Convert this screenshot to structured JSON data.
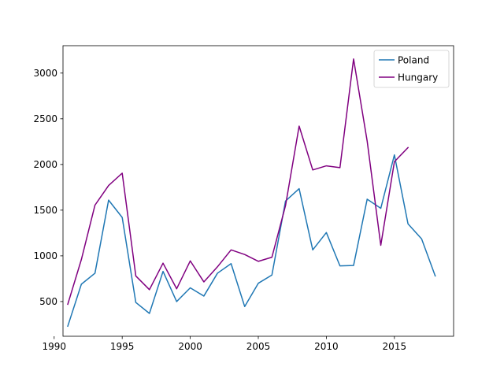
{
  "chart_data": {
    "type": "line",
    "title": "",
    "xlabel": "",
    "ylabel": "",
    "xlim": [
      1990.65,
      2019.35
    ],
    "ylim": [
      120,
      3300
    ],
    "x_ticks": [
      1990,
      1995,
      2000,
      2005,
      2010,
      2015
    ],
    "y_ticks": [
      500,
      1000,
      1500,
      2000,
      2500,
      3000
    ],
    "grid": false,
    "legend_position": "top-right",
    "series": [
      {
        "name": "Poland",
        "color": "#1f77b4",
        "x": [
          1991,
          1992,
          1993,
          1994,
          1995,
          1996,
          1997,
          1998,
          1999,
          2000,
          2001,
          2002,
          2003,
          2004,
          2005,
          2006,
          2007,
          2008,
          2009,
          2010,
          2011,
          2012,
          2013,
          2014,
          2015,
          2016,
          2017,
          2018
        ],
        "values": [
          230,
          690,
          810,
          1610,
          1420,
          490,
          370,
          830,
          500,
          650,
          560,
          810,
          915,
          445,
          700,
          790,
          1600,
          1735,
          1065,
          1255,
          890,
          895,
          1620,
          1520,
          2105,
          1350,
          1185,
          780
        ]
      },
      {
        "name": "Hungary",
        "color": "#800080",
        "x": [
          1991,
          1992,
          1993,
          1994,
          1995,
          1996,
          1997,
          1998,
          1999,
          2000,
          2001,
          2002,
          2003,
          2004,
          2005,
          2006,
          2007,
          2008,
          2009,
          2010,
          2011,
          2012,
          2013,
          2014,
          2015,
          2016
        ],
        "values": [
          470,
          960,
          1555,
          1770,
          1905,
          780,
          630,
          920,
          640,
          945,
          715,
          880,
          1065,
          1015,
          940,
          985,
          1550,
          2420,
          1940,
          1985,
          1965,
          3155,
          2255,
          1115,
          2030,
          2185
        ]
      }
    ]
  }
}
